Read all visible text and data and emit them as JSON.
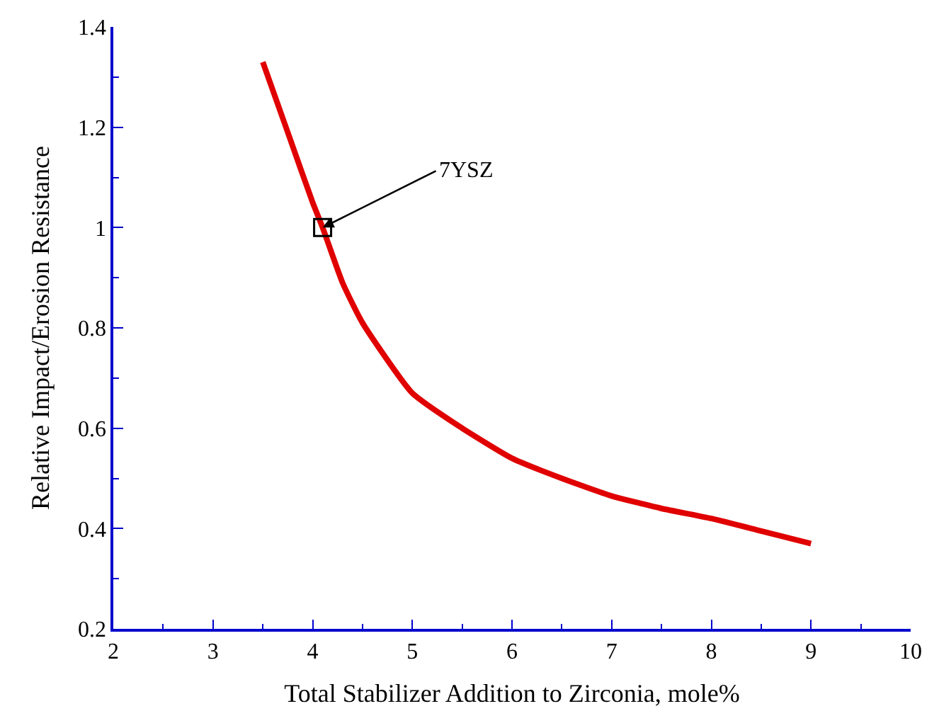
{
  "chart_data": {
    "type": "line",
    "xlabel": "Total Stabilizer Addition to Zirconia, mole%",
    "ylabel": "Relative Impact/Erosion Resistance",
    "series": [
      {
        "color": "#e00000",
        "x": [
          3.5,
          3.75,
          4.0,
          4.1,
          4.3,
          4.5,
          5.0,
          5.5,
          6.0,
          6.5,
          7.0,
          7.5,
          8.0,
          8.5,
          9.0
        ],
        "values": [
          1.33,
          1.19,
          1.05,
          1.0,
          0.89,
          0.81,
          0.67,
          0.6,
          0.54,
          0.5,
          0.465,
          0.44,
          0.42,
          0.395,
          0.37
        ]
      },
      {
        "type": "scatter",
        "marker": "square",
        "color": "#000000",
        "x": [
          4.1
        ],
        "values": [
          1.0
        ]
      }
    ],
    "annotations": [
      {
        "text": "7YSZ",
        "x": 4.1,
        "y": 1.0
      }
    ],
    "xlim": [
      2,
      10
    ],
    "xticks": [
      2,
      3,
      4,
      5,
      6,
      7,
      8,
      9,
      10
    ],
    "ylim": [
      0.2,
      1.4
    ],
    "yticks": [
      0.2,
      0.4,
      0.6,
      0.8,
      1,
      1.2,
      1.4
    ],
    "marker": "none",
    "line_style": "solid"
  }
}
